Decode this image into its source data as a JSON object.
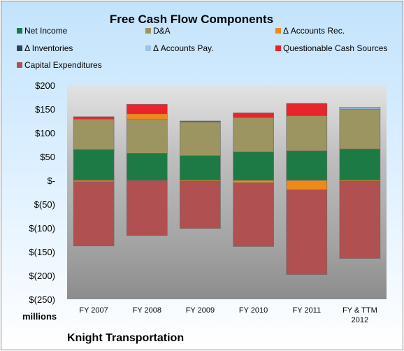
{
  "chart_data": {
    "type": "bar",
    "stacked": true,
    "title": "Free Cash Flow Components",
    "units_label": "millions",
    "company": "Knight Transportation",
    "categories": [
      "FY 2007",
      "FY 2008",
      "FY 2009",
      "FY 2010",
      "FY 2011",
      "FY & TTM 2012"
    ],
    "ylim": [
      -250,
      200
    ],
    "yticks": [
      200,
      150,
      100,
      50,
      0,
      -50,
      -100,
      -150,
      -200,
      -250
    ],
    "ytick_labels": [
      "$200",
      "$150",
      "$100",
      "$50",
      "$-",
      "$(50)",
      "$(100)",
      "$(150)",
      "$(200)",
      "$(250)"
    ],
    "legend_position": "top",
    "grid": false,
    "series": [
      {
        "name": "Net Income",
        "color": "#1e7a45",
        "values": [
          65,
          57,
          52,
          60,
          62,
          66
        ]
      },
      {
        "name": "D&A",
        "color": "#9c9461",
        "values": [
          64,
          71,
          71,
          72,
          74,
          84
        ]
      },
      {
        "name": "Δ Accounts Rec.",
        "color": "#f0891c",
        "values": [
          -3,
          12,
          -2,
          -5,
          -20,
          -2
        ]
      },
      {
        "name": "Δ Inventories",
        "color": "#2c4457",
        "values": [
          0,
          0,
          0,
          0,
          0,
          0
        ]
      },
      {
        "name": "Δ Accounts Pay.",
        "color": "#9ec3e6",
        "values": [
          0,
          0,
          0,
          0,
          0,
          4
        ]
      },
      {
        "name": "Questionable Cash Sources",
        "color": "#e8242c",
        "values": [
          5,
          20,
          2,
          10,
          26,
          0
        ]
      },
      {
        "name": "Capital Expenditures",
        "color": "#b05050",
        "values": [
          -135,
          -116,
          -99,
          -134,
          -178,
          -162
        ]
      }
    ]
  }
}
